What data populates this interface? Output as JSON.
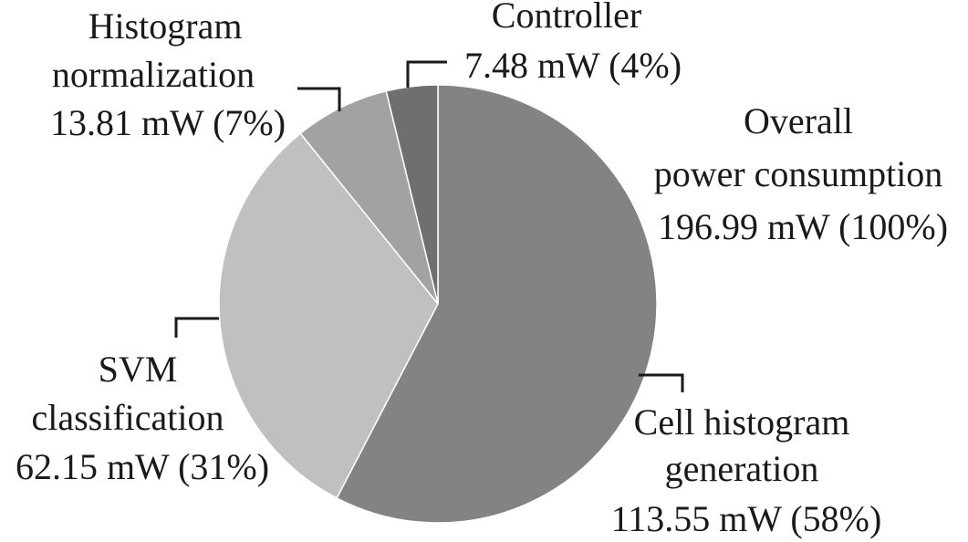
{
  "chart_data": {
    "type": "pie",
    "title": "",
    "units": "mW",
    "total": {
      "lines": [
        "Overall",
        "power consumption",
        "196.99 mW (100%)"
      ],
      "value": 196.99,
      "percent": 100
    },
    "slices": [
      {
        "name": "Cell histogram generation",
        "value": 113.55,
        "percent": 58,
        "color": "#828382",
        "lines": [
          "Cell histogram",
          "generation",
          "113.55 mW (58%)"
        ]
      },
      {
        "name": "SVM classification",
        "value": 62.15,
        "percent": 31,
        "color": "#c0c0c0",
        "lines": [
          "SVM",
          "classification",
          "62.15 mW (31%)"
        ]
      },
      {
        "name": "Histogram normalization",
        "value": 13.81,
        "percent": 7,
        "color": "#a1a2a1",
        "lines": [
          "Histogram",
          "normalization",
          "13.81 mW (7%)"
        ]
      },
      {
        "name": "Controller",
        "value": 7.48,
        "percent": 4,
        "color": "#6e6f6e",
        "lines": [
          "Controller",
          "7.48 mW (4%)"
        ]
      }
    ]
  }
}
